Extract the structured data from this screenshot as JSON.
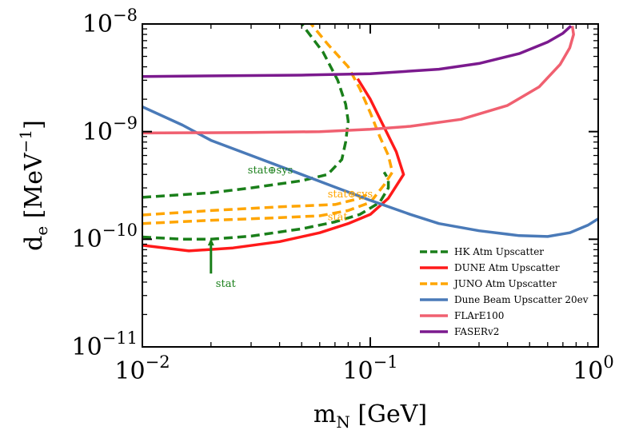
{
  "chart_data": {
    "type": "line",
    "xscale": "log",
    "yscale": "log",
    "xlim": [
      0.01,
      1
    ],
    "ylim": [
      1e-11,
      1e-08
    ],
    "xticks": [
      {
        "value": 0.01,
        "base": "10",
        "exp": "−2"
      },
      {
        "value": 0.1,
        "base": "10",
        "exp": "−1"
      },
      {
        "value": 1,
        "base": "10",
        "exp": "0"
      }
    ],
    "yticks": [
      {
        "value": 1e-11,
        "base": "10",
        "exp": "−11"
      },
      {
        "value": 1e-10,
        "base": "10",
        "exp": "−10"
      },
      {
        "value": 1e-09,
        "base": "10",
        "exp": "−9"
      },
      {
        "value": 1e-08,
        "base": "10",
        "exp": "−8"
      }
    ],
    "xlabel": {
      "main": "m",
      "sub": "N",
      "unit": " [GeV]"
    },
    "ylabel": {
      "main": "d",
      "sub": "e",
      "unit": " [MeV",
      "unit_exp": "−1",
      "unit_close": "]"
    },
    "grid": false,
    "legend_position": "lower-right",
    "series": [
      {
        "name": "HK Atm Upscatter",
        "color": "#1a7f1a",
        "dash": true,
        "curves": [
          [
            [
              0.01,
              1.05e-10
            ],
            [
              0.015,
              1e-10
            ],
            [
              0.02,
              1e-10
            ],
            [
              0.03,
              1.07e-10
            ],
            [
              0.05,
              1.25e-10
            ],
            [
              0.07,
              1.45e-10
            ],
            [
              0.09,
              1.7e-10
            ],
            [
              0.11,
              2.2e-10
            ],
            [
              0.12,
              3e-10
            ],
            [
              0.12,
              3.6e-10
            ],
            [
              0.115,
              4.2e-10
            ]
          ],
          [
            [
              0.01,
              2.45e-10
            ],
            [
              0.02,
              2.7e-10
            ],
            [
              0.03,
              3e-10
            ],
            [
              0.05,
              3.5e-10
            ],
            [
              0.065,
              4e-10
            ],
            [
              0.075,
              5.5e-10
            ],
            [
              0.078,
              8e-10
            ],
            [
              0.08,
              1.25e-09
            ],
            [
              0.078,
              1.8e-09
            ],
            [
              0.072,
              3e-09
            ],
            [
              0.062,
              5.5e-09
            ],
            [
              0.05,
              1e-08
            ]
          ]
        ]
      },
      {
        "name": "DUNE Atm Upscatter",
        "color": "#ff1a1a",
        "dash": false,
        "curves": [
          [
            [
              0.01,
              8.8e-11
            ],
            [
              0.016,
              7.8e-11
            ],
            [
              0.025,
              8.3e-11
            ],
            [
              0.04,
              9.5e-11
            ],
            [
              0.06,
              1.15e-10
            ],
            [
              0.08,
              1.4e-10
            ],
            [
              0.1,
              1.7e-10
            ],
            [
              0.12,
              2.4e-10
            ],
            [
              0.14,
              4e-10
            ],
            [
              0.13,
              6.5e-10
            ],
            [
              0.115,
              1.1e-09
            ],
            [
              0.1,
              2e-09
            ],
            [
              0.088,
              3.1e-09
            ]
          ]
        ]
      },
      {
        "name": "JUNO Atm Upscatter",
        "color": "#ffa500",
        "dash": true,
        "curves": [
          [
            [
              0.01,
              1.4e-10
            ],
            [
              0.02,
              1.5e-10
            ],
            [
              0.035,
              1.57e-10
            ],
            [
              0.06,
              1.65e-10
            ],
            [
              0.08,
              1.85e-10
            ],
            [
              0.1,
              2.2e-10
            ],
            [
              0.115,
              3.2e-10
            ],
            [
              0.125,
              4.2e-10
            ],
            [
              0.12,
              6e-10
            ],
            [
              0.11,
              9e-10
            ],
            [
              0.1,
              1.5e-09
            ],
            [
              0.09,
              2.5e-09
            ],
            [
              0.08,
              4e-09
            ],
            [
              0.065,
              6.5e-09
            ],
            [
              0.055,
              1e-08
            ]
          ],
          [
            [
              0.01,
              1.68e-10
            ],
            [
              0.02,
              1.85e-10
            ],
            [
              0.04,
              2e-10
            ],
            [
              0.07,
              2.1e-10
            ],
            [
              0.09,
              2.4e-10
            ],
            [
              0.1,
              2.7e-10
            ]
          ]
        ]
      },
      {
        "name": "Dune Beam Upscatter 20ev",
        "color": "#4a7ab8",
        "dash": false,
        "curves": [
          [
            [
              0.01,
              1.7e-09
            ],
            [
              0.015,
              1.15e-09
            ],
            [
              0.02,
              8.3e-10
            ],
            [
              0.03,
              6e-10
            ],
            [
              0.05,
              4e-10
            ],
            [
              0.07,
              3.05e-10
            ],
            [
              0.1,
              2.3e-10
            ],
            [
              0.15,
              1.7e-10
            ],
            [
              0.2,
              1.4e-10
            ],
            [
              0.3,
              1.2e-10
            ],
            [
              0.45,
              1.08e-10
            ],
            [
              0.6,
              1.06e-10
            ],
            [
              0.75,
              1.15e-10
            ],
            [
              0.9,
              1.35e-10
            ],
            [
              1.0,
              1.55e-10
            ]
          ]
        ]
      },
      {
        "name": "FLArE100",
        "color": "#f06070",
        "dash": false,
        "curves": [
          [
            [
              0.01,
              9.7e-10
            ],
            [
              0.03,
              9.8e-10
            ],
            [
              0.06,
              1e-09
            ],
            [
              0.1,
              1.05e-09
            ],
            [
              0.15,
              1.12e-09
            ],
            [
              0.25,
              1.3e-09
            ],
            [
              0.4,
              1.75e-09
            ],
            [
              0.55,
              2.6e-09
            ],
            [
              0.68,
              4.2e-09
            ],
            [
              0.75,
              6e-09
            ],
            [
              0.78,
              8e-09
            ],
            [
              0.77,
              9.6e-09
            ]
          ]
        ]
      },
      {
        "name": "FASERv2",
        "color": "#7b1a8e",
        "dash": false,
        "curves": [
          [
            [
              0.01,
              3.25e-09
            ],
            [
              0.05,
              3.35e-09
            ],
            [
              0.1,
              3.45e-09
            ],
            [
              0.2,
              3.8e-09
            ],
            [
              0.3,
              4.3e-09
            ],
            [
              0.45,
              5.3e-09
            ],
            [
              0.6,
              6.8e-09
            ],
            [
              0.7,
              8.2e-09
            ],
            [
              0.76,
              9.6e-09
            ]
          ]
        ]
      }
    ],
    "annotations": [
      {
        "text": "stat⊕sys",
        "x": 0.029,
        "y": 4.1e-10,
        "color": "#1a7f1a"
      },
      {
        "text": "stat⊕sys",
        "x": 0.065,
        "y": 2.45e-10,
        "color": "#ffa500"
      },
      {
        "text": "stat",
        "x": 0.065,
        "y": 1.5e-10,
        "color": "#ffa500"
      },
      {
        "text": "stat",
        "x": 0.021,
        "y": 3.6e-11,
        "color": "#1a7f1a"
      }
    ],
    "stat_arrow": {
      "x": 0.02,
      "y_from": 4.8e-11,
      "y_to": 1.02e-10,
      "color": "#1a7f1a"
    }
  }
}
